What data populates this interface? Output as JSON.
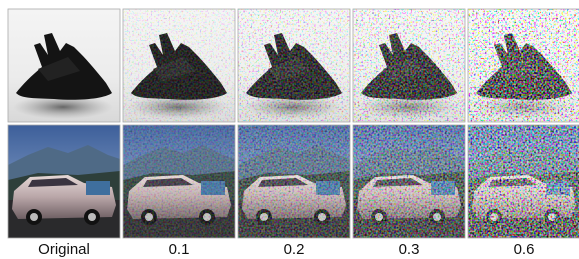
{
  "figure": {
    "columns": [
      "Original",
      "0.1",
      "0.2",
      "0.3",
      "0.6"
    ]
  }
}
